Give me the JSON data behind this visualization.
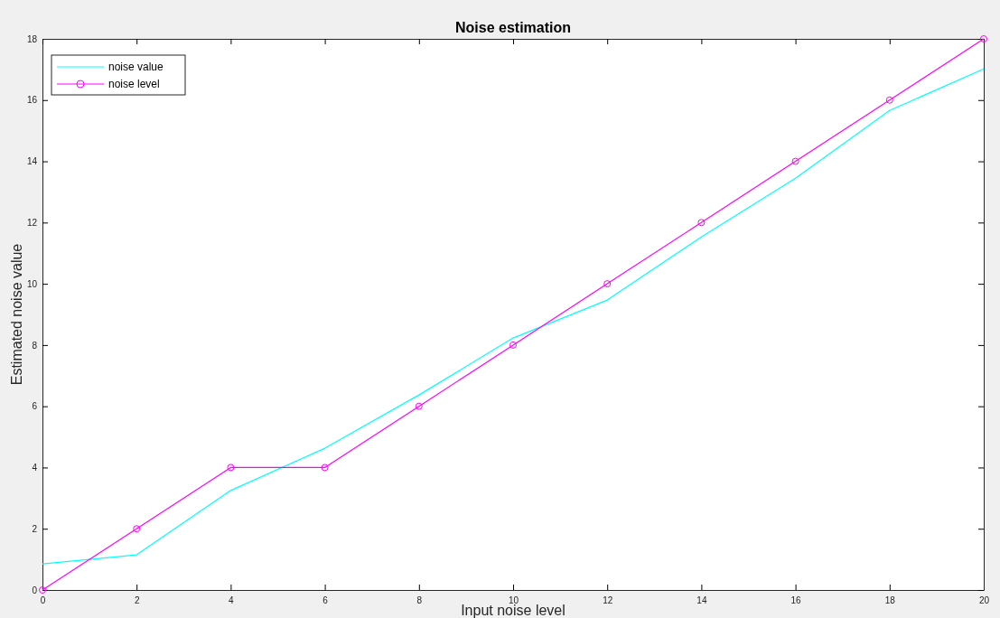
{
  "chart_data": {
    "type": "line",
    "title": "Noise estimation",
    "xlabel": "Input noise level",
    "ylabel": "Estimated noise value",
    "x": [
      0,
      2,
      4,
      6,
      8,
      10,
      12,
      14,
      16,
      18,
      20
    ],
    "series": [
      {
        "name": "noise value",
        "color": "#00ffff",
        "marker": "none",
        "values": [
          0.85,
          1.15,
          3.25,
          4.63,
          6.37,
          8.23,
          9.47,
          11.53,
          13.45,
          15.66,
          17.02
        ]
      },
      {
        "name": "noise level",
        "color": "#ff00ff",
        "marker": "circle",
        "values": [
          0,
          2,
          4,
          4,
          6,
          8,
          10,
          12,
          14,
          16,
          18
        ]
      }
    ],
    "xlim": [
      0,
      20
    ],
    "xticks": [
      0,
      2,
      4,
      6,
      8,
      10,
      12,
      14,
      16,
      18,
      20
    ],
    "ylim": [
      0,
      18
    ],
    "yticks": [
      0,
      2,
      4,
      6,
      8,
      10,
      12,
      14,
      16,
      18
    ],
    "grid": false,
    "legend": "top left",
    "line_style": "solid"
  }
}
